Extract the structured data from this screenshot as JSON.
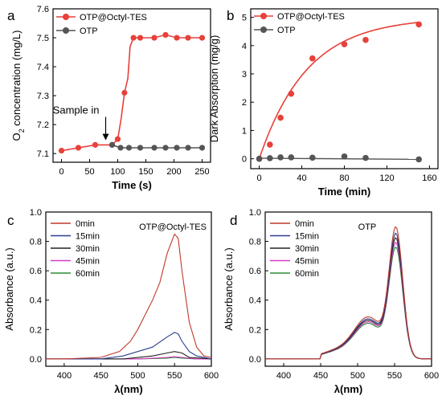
{
  "chart_data": [
    {
      "panel": "a",
      "type": "line",
      "xlabel": "Time (s)",
      "ylabel": "O2 concentration (mg/L)",
      "xlim": [
        -15,
        265
      ],
      "ylim": [
        7.07,
        7.6
      ],
      "xticks": [
        0,
        50,
        100,
        150,
        200,
        250
      ],
      "yticks": [
        7.1,
        7.2,
        7.3,
        7.4,
        7.5,
        7.6
      ],
      "annotation": "Sample in",
      "legend_position": "top-left",
      "series": [
        {
          "name": "OTP@Octyl-TES",
          "color": "#e8403a",
          "x": [
            0,
            30,
            60,
            90,
            100,
            106,
            112,
            118,
            122,
            128,
            140,
            165,
            185,
            205,
            225,
            250
          ],
          "y": [
            7.11,
            7.12,
            7.13,
            7.13,
            7.15,
            7.22,
            7.31,
            7.36,
            7.47,
            7.5,
            7.5,
            7.5,
            7.51,
            7.5,
            7.5,
            7.5
          ]
        },
        {
          "name": "OTP",
          "color": "#555555",
          "x": [
            90,
            105,
            120,
            140,
            165,
            185,
            205,
            225,
            250
          ],
          "y": [
            7.13,
            7.12,
            7.12,
            7.12,
            7.12,
            7.12,
            7.12,
            7.12,
            7.12
          ]
        }
      ]
    },
    {
      "panel": "b",
      "type": "scatter",
      "xlabel": "Time (min)",
      "ylabel": "Dark Absorption (mg/g)",
      "xlim": [
        -8,
        168
      ],
      "ylim": [
        -0.35,
        5.3
      ],
      "xticks": [
        0,
        40,
        80,
        120,
        160
      ],
      "yticks": [
        0,
        1,
        2,
        3,
        4,
        5
      ],
      "legend_position": "top-left",
      "series": [
        {
          "name": "OTP@Octyl-TES",
          "color": "#e8403a",
          "x": [
            0,
            10,
            20,
            30,
            50,
            80,
            100,
            150
          ],
          "y": [
            0,
            0.5,
            1.45,
            2.3,
            3.55,
            4.05,
            4.2,
            4.75
          ]
        },
        {
          "name": "OTP",
          "color": "#555555",
          "x": [
            0,
            10,
            20,
            30,
            50,
            80,
            100,
            150
          ],
          "y": [
            0,
            0.02,
            0.05,
            0.05,
            0.04,
            0.08,
            0.03,
            -0.02
          ]
        }
      ]
    },
    {
      "panel": "c",
      "type": "line",
      "title": "OTP@Octyl-TES",
      "xlabel": "λ(nm)",
      "ylabel": "Absorbance (a.u.)",
      "xlim": [
        375,
        600
      ],
      "ylim": [
        -0.05,
        1.0
      ],
      "xticks": [
        400,
        450,
        500,
        550,
        600
      ],
      "yticks": [
        0.0,
        0.2,
        0.4,
        0.6,
        0.8,
        1.0
      ],
      "legend_position": "top-left",
      "series": [
        {
          "name": "0min",
          "color": "#c0392b",
          "x": [
            375,
            400,
            450,
            475,
            490,
            500,
            510,
            520,
            530,
            540,
            550,
            555,
            560,
            570,
            580,
            590,
            600
          ],
          "y": [
            0.0,
            0.0,
            0.01,
            0.05,
            0.12,
            0.2,
            0.3,
            0.4,
            0.52,
            0.72,
            0.85,
            0.82,
            0.6,
            0.25,
            0.08,
            0.02,
            0.01
          ]
        },
        {
          "name": "15min",
          "color": "#2c3e8f",
          "x": [
            375,
            450,
            480,
            500,
            520,
            540,
            550,
            555,
            560,
            570,
            580,
            600
          ],
          "y": [
            0.0,
            0.0,
            0.02,
            0.05,
            0.08,
            0.15,
            0.18,
            0.17,
            0.12,
            0.05,
            0.02,
            0.0
          ]
        },
        {
          "name": "30min",
          "color": "#222222",
          "x": [
            375,
            480,
            520,
            540,
            550,
            560,
            570,
            600
          ],
          "y": [
            0.0,
            0.0,
            0.02,
            0.04,
            0.05,
            0.04,
            0.01,
            0.0
          ]
        },
        {
          "name": "45min",
          "color": "#d63cc4",
          "x": [
            375,
            500,
            540,
            550,
            560,
            580,
            600
          ],
          "y": [
            0.0,
            0.0,
            0.01,
            0.015,
            0.01,
            0.0,
            0.0
          ]
        },
        {
          "name": "60min",
          "color": "#2e8b3a",
          "x": [
            375,
            500,
            540,
            550,
            560,
            580,
            600
          ],
          "y": [
            0.0,
            0.0,
            0.005,
            0.01,
            0.005,
            0.0,
            0.0
          ]
        }
      ]
    },
    {
      "panel": "d",
      "type": "line",
      "title": "OTP",
      "xlabel": "λ(nm)",
      "ylabel": "Absorbance (a.u.)",
      "xlim": [
        375,
        600
      ],
      "ylim": [
        -0.05,
        1.0
      ],
      "xticks": [
        400,
        450,
        500,
        550,
        600
      ],
      "yticks": [
        0.0,
        0.2,
        0.4,
        0.6,
        0.8,
        1.0
      ],
      "legend_position": "top-left",
      "series": [
        {
          "name": "0min",
          "color": "#c0392b",
          "peak": 0.85
        },
        {
          "name": "15min",
          "color": "#2c3e8f",
          "peak": 0.81
        },
        {
          "name": "30min",
          "color": "#222222",
          "peak": 0.78
        },
        {
          "name": "45min",
          "color": "#d63cc4",
          "peak": 0.75
        },
        {
          "name": "60min",
          "color": "#2e8b3a",
          "peak": 0.72
        }
      ]
    }
  ]
}
